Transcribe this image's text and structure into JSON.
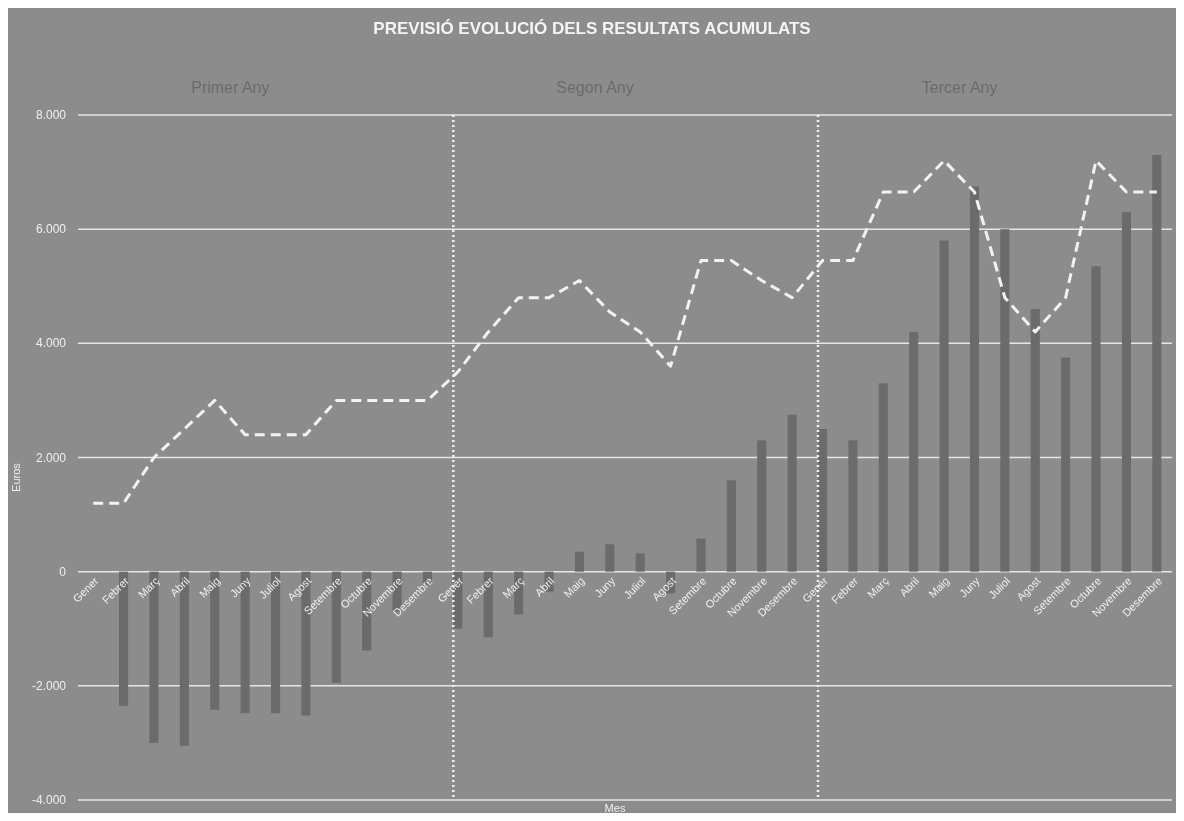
{
  "chart_data": {
    "type": "bar",
    "title": "PREVISIÓ EVOLUCIÓ DELS RESULTATS ACUMULATS",
    "xlabel": "Mes",
    "ylabel": "Euros",
    "annotations": [
      "Primer Any",
      "Segon Any",
      "Tercer Any"
    ],
    "categories": [
      "Gener",
      "Febrer",
      "Març",
      "Abril",
      "Maig",
      "Juny",
      "Juliol",
      "Agost",
      "Setembre",
      "Octubre",
      "Novembre",
      "Desembre",
      "Gener",
      "Febrer",
      "Març",
      "Abril",
      "Maig",
      "Juny",
      "Juliol",
      "Agost",
      "Setembre",
      "Octubre",
      "Novembre",
      "Desembre",
      "Gener",
      "Febrer",
      "Març",
      "Abril",
      "Maig",
      "Juny",
      "Juliol",
      "Agost",
      "Setembre",
      "Octubre",
      "Novembre",
      "Desembre"
    ],
    "series": [
      {
        "color": "#6b6b6b",
        "values": [
          0,
          -2350,
          -3000,
          -3050,
          -2420,
          -2480,
          -2480,
          -2520,
          -1950,
          -1380,
          -700,
          -230,
          -1000,
          -1150,
          -750,
          -350,
          350,
          480,
          320,
          -380,
          580,
          1600,
          2300,
          2750,
          2500,
          2300,
          3300,
          4200,
          5800,
          6750,
          6000,
          4600,
          3750,
          5350,
          6300,
          7300
        ]
      },
      {
        "type": "line",
        "color": "#f2f2f2",
        "line_style": "dashed",
        "values": [
          1200,
          1200,
          2000,
          2500,
          3000,
          2400,
          2400,
          2400,
          3000,
          3000,
          3000,
          3000,
          3500,
          4200,
          4800,
          4800,
          5100,
          4550,
          4200,
          3600,
          5450,
          5450,
          5100,
          4800,
          5450,
          5450,
          6650,
          6650,
          7200,
          6650,
          4800,
          4200,
          4800,
          7200,
          6650,
          6650
        ]
      }
    ],
    "ylim": [
      -4000,
      8000
    ],
    "yticks": [
      {
        "value": -4000,
        "label": "-4.000"
      },
      {
        "value": -2000,
        "label": "-2.000"
      },
      0,
      {
        "value": 2000,
        "label": "2.000"
      },
      {
        "value": 4000,
        "label": "4.000"
      },
      {
        "value": 6000,
        "label": "6.000"
      },
      {
        "value": 8000,
        "label": "8.000"
      }
    ],
    "grid": true
  }
}
